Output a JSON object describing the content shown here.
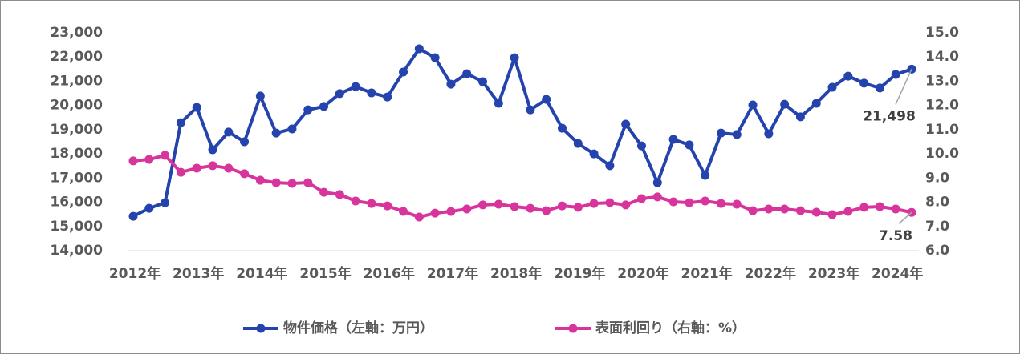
{
  "chart_data": {
    "type": "line",
    "categories": [
      "2012年",
      null,
      null,
      null,
      "2013年",
      null,
      null,
      null,
      "2014年",
      null,
      null,
      null,
      "2015年",
      null,
      null,
      null,
      "2016年",
      null,
      null,
      null,
      "2017年",
      null,
      null,
      null,
      "2018年",
      null,
      null,
      null,
      "2019年",
      null,
      null,
      null,
      "2020年",
      null,
      null,
      null,
      "2021年",
      null,
      null,
      null,
      "2022年",
      null,
      null,
      null,
      "2023年",
      null,
      null,
      null,
      "2024年",
      null
    ],
    "series": [
      {
        "name": "物件価格（左軸：万円）",
        "color": "#2543ad",
        "values": [
          15420,
          15750,
          15980,
          19290,
          19920,
          18170,
          18900,
          18500,
          20390,
          18860,
          19030,
          19820,
          19960,
          20490,
          20780,
          20520,
          20350,
          21380,
          22340,
          21970,
          20880,
          21310,
          20980,
          20090,
          21970,
          19820,
          20250,
          19060,
          18430,
          18000,
          17510,
          19230,
          18330,
          16810,
          18600,
          18370,
          17110,
          18860,
          18800,
          20020,
          18830,
          20050,
          19530,
          20090,
          20750,
          21210,
          20920,
          20720,
          21280,
          21498
        ],
        "value_labels": [
          null,
          null,
          null,
          null,
          null,
          null,
          null,
          null,
          null,
          null,
          null,
          null,
          null,
          null,
          null,
          null,
          null,
          null,
          null,
          null,
          null,
          null,
          null,
          null,
          null,
          null,
          null,
          null,
          null,
          null,
          null,
          null,
          null,
          null,
          null,
          null,
          null,
          null,
          null,
          null,
          null,
          null,
          null,
          null,
          null,
          null,
          null,
          null,
          null,
          "21,498"
        ]
      },
      {
        "name": "表面利回り（右軸：%）",
        "color": "#d7359c",
        "axis": "y2",
        "values": [
          9.71,
          9.77,
          9.94,
          9.24,
          9.41,
          9.51,
          9.41,
          9.18,
          8.91,
          8.81,
          8.78,
          8.81,
          8.41,
          8.32,
          8.05,
          7.95,
          7.85,
          7.62,
          7.39,
          7.55,
          7.62,
          7.72,
          7.89,
          7.92,
          7.82,
          7.75,
          7.65,
          7.85,
          7.79,
          7.95,
          7.98,
          7.89,
          8.15,
          8.22,
          8.02,
          7.98,
          8.05,
          7.95,
          7.92,
          7.65,
          7.72,
          7.72,
          7.65,
          7.59,
          7.49,
          7.62,
          7.79,
          7.82,
          7.72,
          7.58
        ]
      }
    ],
    "ylim": [
      14000,
      23000
    ],
    "yticks": [
      {
        "value": 14000,
        "label": "14,000"
      },
      {
        "value": 15000,
        "label": "15,000"
      },
      {
        "value": 16000,
        "label": "16,000"
      },
      {
        "value": 17000,
        "label": "17,000"
      },
      {
        "value": 18000,
        "label": "18,000"
      },
      {
        "value": 19000,
        "label": "19,000"
      },
      {
        "value": 20000,
        "label": "20,000"
      },
      {
        "value": 21000,
        "label": "21,000"
      },
      {
        "value": 22000,
        "label": "22,000"
      },
      {
        "value": 23000,
        "label": "23,000"
      }
    ],
    "y2lim": [
      6,
      15
    ],
    "y2ticks": [
      {
        "value": 6,
        "label": "6.0"
      },
      {
        "value": 7,
        "label": "7.0"
      },
      {
        "value": 8,
        "label": "8.0"
      },
      {
        "value": 9,
        "label": "9.0"
      },
      {
        "value": 10,
        "label": "10.0"
      },
      {
        "value": 11,
        "label": "11.0"
      },
      {
        "value": 12,
        "label": "12.0"
      },
      {
        "value": 13,
        "label": "13.0"
      },
      {
        "value": 14,
        "label": "14.0"
      },
      {
        "value": 15,
        "label": "15.0"
      }
    ],
    "value_labels": [
      null,
      null,
      null,
      null,
      null,
      null,
      null,
      null,
      null,
      null,
      null,
      null,
      null,
      null,
      null,
      null,
      null,
      null,
      null,
      null,
      null,
      null,
      null,
      null,
      null,
      null,
      null,
      null,
      null,
      null,
      null,
      null,
      null,
      null,
      null,
      null,
      null,
      null,
      null,
      null,
      null,
      null,
      null,
      null,
      null,
      null,
      null,
      null,
      null,
      "7.58"
    ],
    "value_labels_series": 1,
    "grid": false,
    "legend": "bottom"
  }
}
